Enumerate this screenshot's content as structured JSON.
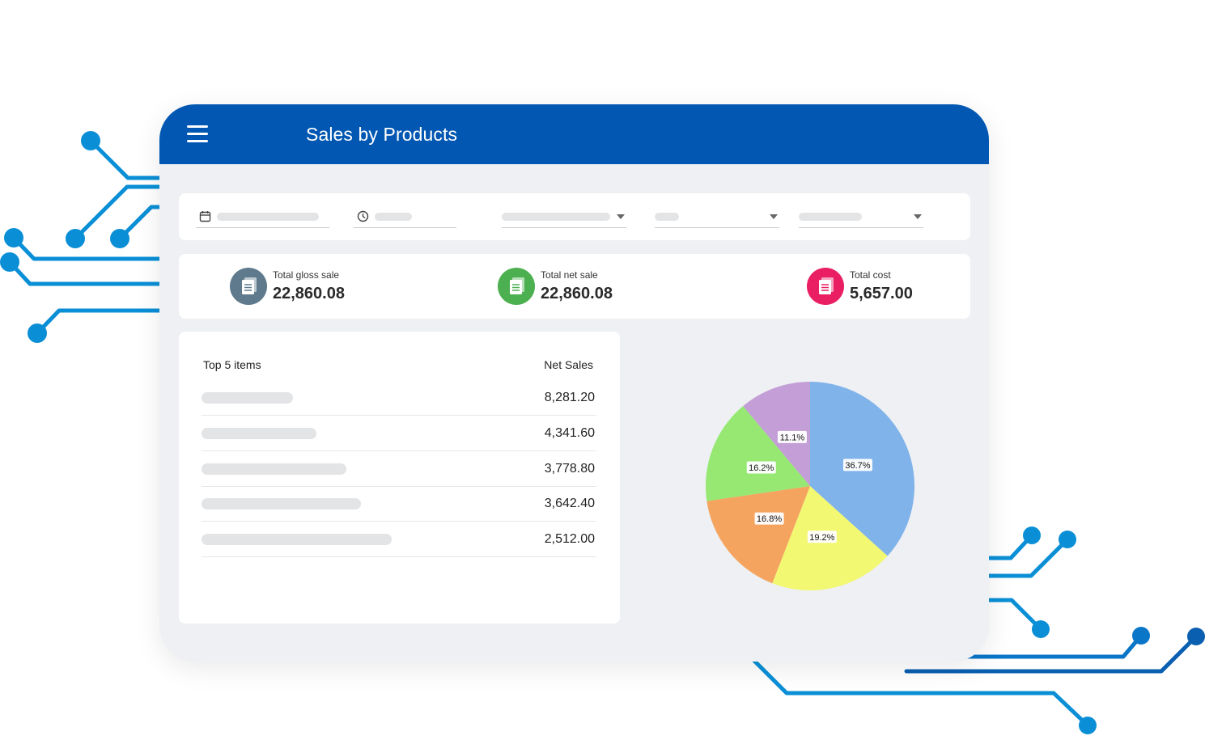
{
  "header": {
    "title": "Sales by Products",
    "menu_icon": "hamburger-menu-icon"
  },
  "filters": [
    {
      "name": "date-filter",
      "icon": "calendar-icon",
      "has_dropdown": false
    },
    {
      "name": "time-filter",
      "icon": "clock-icon",
      "has_dropdown": false
    },
    {
      "name": "filter-select-1",
      "icon": "",
      "has_dropdown": true
    },
    {
      "name": "filter-select-2",
      "icon": "",
      "has_dropdown": true
    },
    {
      "name": "filter-select-3",
      "icon": "",
      "has_dropdown": true
    }
  ],
  "kpis": [
    {
      "label": "Total gloss sale",
      "value": "22,860.08",
      "color": "#5f7a8c",
      "icon": "document-icon"
    },
    {
      "label": "Total net sale",
      "value": "22,860.08",
      "color": "#4caf50",
      "icon": "document-icon"
    },
    {
      "label": "Total cost",
      "value": "5,657.00",
      "color": "#e91e63",
      "icon": "document-icon"
    }
  ],
  "top_items": {
    "title": "Top 5 items",
    "column_label": "Net Sales",
    "rows": [
      {
        "amount": "8,281.20"
      },
      {
        "amount": "4,341.60"
      },
      {
        "amount": "3,778.80"
      },
      {
        "amount": "3,642.40"
      },
      {
        "amount": "2,512.00"
      }
    ]
  },
  "chart_data": {
    "type": "pie",
    "values": [
      36.7,
      19.2,
      16.8,
      16.2,
      11.1
    ],
    "labels": [
      "36.7%",
      "19.2%",
      "16.8%",
      "16.2%",
      "11.1%"
    ],
    "colors": [
      "#7fb3ea",
      "#f2f871",
      "#f5a45f",
      "#96e873",
      "#c49ed6"
    ]
  },
  "theme": {
    "header_color": "#0157b2",
    "circuit_color": "#0a8fd6"
  }
}
